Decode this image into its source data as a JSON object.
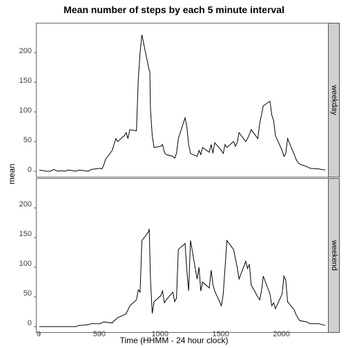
{
  "title": "Mean number of steps by each 5 minute interval",
  "title_fontsize": 14,
  "ylabel": "mean",
  "xlabel": "Time (HHMM - 24 hour clock)",
  "label_fontsize": 12,
  "tick_fontsize": 11,
  "background_color": "#ffffff",
  "strip_background": "#d0d0d0",
  "grid_color": "#ffffff",
  "line_color": "#000000",
  "line_width": 1.0,
  "border_color": "#555555",
  "xlim": [
    0,
    2355
  ],
  "ylim": [
    0,
    235
  ],
  "xticks": [
    0,
    500,
    1000,
    1500,
    2000
  ],
  "yticks": [
    0,
    50,
    100,
    150,
    200
  ],
  "panels": [
    {
      "strip_label": "weekday",
      "data": {
        "x": [
          0,
          30,
          60,
          90,
          120,
          150,
          180,
          210,
          240,
          270,
          300,
          330,
          400,
          430,
          500,
          515,
          530,
          545,
          600,
          615,
          630,
          645,
          700,
          715,
          730,
          745,
          800,
          815,
          830,
          845,
          900,
          905,
          910,
          915,
          930,
          945,
          1000,
          1015,
          1030,
          1045,
          1100,
          1115,
          1130,
          1145,
          1200,
          1215,
          1230,
          1245,
          1300,
          1315,
          1330,
          1345,
          1400,
          1415,
          1430,
          1445,
          1500,
          1515,
          1530,
          1545,
          1600,
          1615,
          1630,
          1645,
          1700,
          1715,
          1730,
          1745,
          1800,
          1815,
          1830,
          1845,
          1900,
          1915,
          1930,
          1945,
          2000,
          2015,
          2030,
          2045,
          2100,
          2115,
          2130,
          2145,
          2200,
          2230,
          2300,
          2355
        ],
        "y": [
          2,
          1,
          0,
          0,
          3,
          0,
          1,
          0,
          2,
          1,
          0,
          2,
          0,
          3,
          5,
          4,
          10,
          20,
          35,
          45,
          55,
          50,
          60,
          65,
          55,
          70,
          68,
          155,
          200,
          230,
          175,
          170,
          168,
          105,
          60,
          40,
          42,
          45,
          32,
          28,
          25,
          22,
          30,
          55,
          90,
          75,
          45,
          30,
          25,
          35,
          28,
          40,
          32,
          45,
          30,
          48,
          35,
          30,
          45,
          40,
          50,
          42,
          48,
          65,
          50,
          55,
          62,
          70,
          55,
          80,
          95,
          110,
          118,
          95,
          85,
          60,
          35,
          25,
          30,
          55,
          28,
          20,
          15,
          12,
          8,
          5,
          4,
          2
        ]
      }
    },
    {
      "strip_label": "weekend",
      "data": {
        "x": [
          0,
          30,
          60,
          90,
          120,
          150,
          180,
          210,
          240,
          270,
          300,
          330,
          400,
          430,
          500,
          530,
          600,
          615,
          630,
          645,
          700,
          715,
          730,
          745,
          800,
          815,
          830,
          845,
          900,
          905,
          915,
          930,
          945,
          1000,
          1015,
          1030,
          1045,
          1100,
          1115,
          1130,
          1145,
          1200,
          1215,
          1230,
          1245,
          1300,
          1315,
          1330,
          1345,
          1400,
          1415,
          1430,
          1445,
          1500,
          1515,
          1530,
          1545,
          1600,
          1615,
          1630,
          1645,
          1700,
          1715,
          1730,
          1745,
          1800,
          1815,
          1830,
          1845,
          1900,
          1915,
          1930,
          1945,
          2000,
          2015,
          2030,
          2045,
          2100,
          2115,
          2130,
          2145,
          2200,
          2230,
          2300,
          2355
        ],
        "y": [
          0,
          0,
          0,
          0,
          0,
          0,
          0,
          0,
          0,
          0,
          0,
          2,
          3,
          5,
          5,
          8,
          6,
          10,
          12,
          15,
          20,
          22,
          28,
          35,
          45,
          62,
          58,
          145,
          160,
          165,
          80,
          22,
          42,
          52,
          60,
          40,
          45,
          58,
          42,
          48,
          130,
          140,
          95,
          60,
          145,
          80,
          100,
          60,
          75,
          65,
          95,
          70,
          60,
          35,
          55,
          100,
          145,
          130,
          115,
          100,
          80,
          110,
          98,
          105,
          70,
          50,
          45,
          60,
          85,
          55,
          35,
          40,
          30,
          55,
          85,
          78,
          42,
          28,
          20,
          15,
          10,
          8,
          5,
          5,
          2
        ]
      }
    }
  ]
}
